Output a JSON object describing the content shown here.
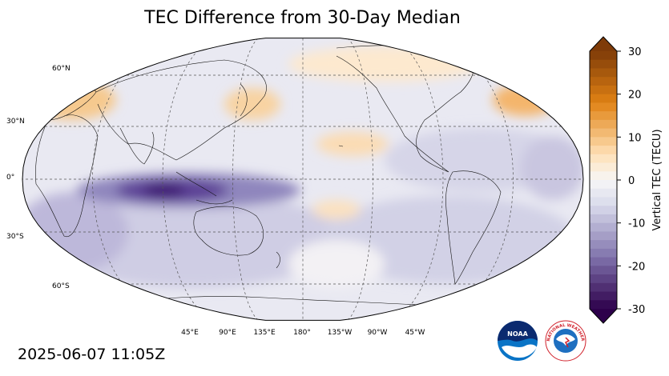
{
  "title": "TEC Difference from 30-Day Median",
  "timestamp": "2025-06-07 11:05Z",
  "map": {
    "projection": "robinson",
    "central_longitude": 180,
    "lat_labels": [
      "60°N",
      "30°N",
      "0°",
      "30°S",
      "60°S"
    ],
    "lon_labels": [
      "45°E",
      "90°E",
      "135°E",
      "180°",
      "135°W",
      "90°W",
      "45°W"
    ]
  },
  "colorbar": {
    "label": "Vertical TEC (TECU)",
    "ticks": [
      "30",
      "20",
      "10",
      "0",
      "-10",
      "-20",
      "-30"
    ],
    "vmin": -30,
    "vmax": 30,
    "colors": {
      "neg_max": "#2d004b",
      "neg_mid": "#8073ac",
      "neg_low": "#d8daeb",
      "zero": "#f7f7f7",
      "pos_low": "#fee0b6",
      "pos_mid": "#e08214",
      "pos_max": "#7f3b08"
    }
  },
  "logos": {
    "noaa": "NOAA",
    "nws": "NATIONAL WEATHER SERVICE"
  }
}
